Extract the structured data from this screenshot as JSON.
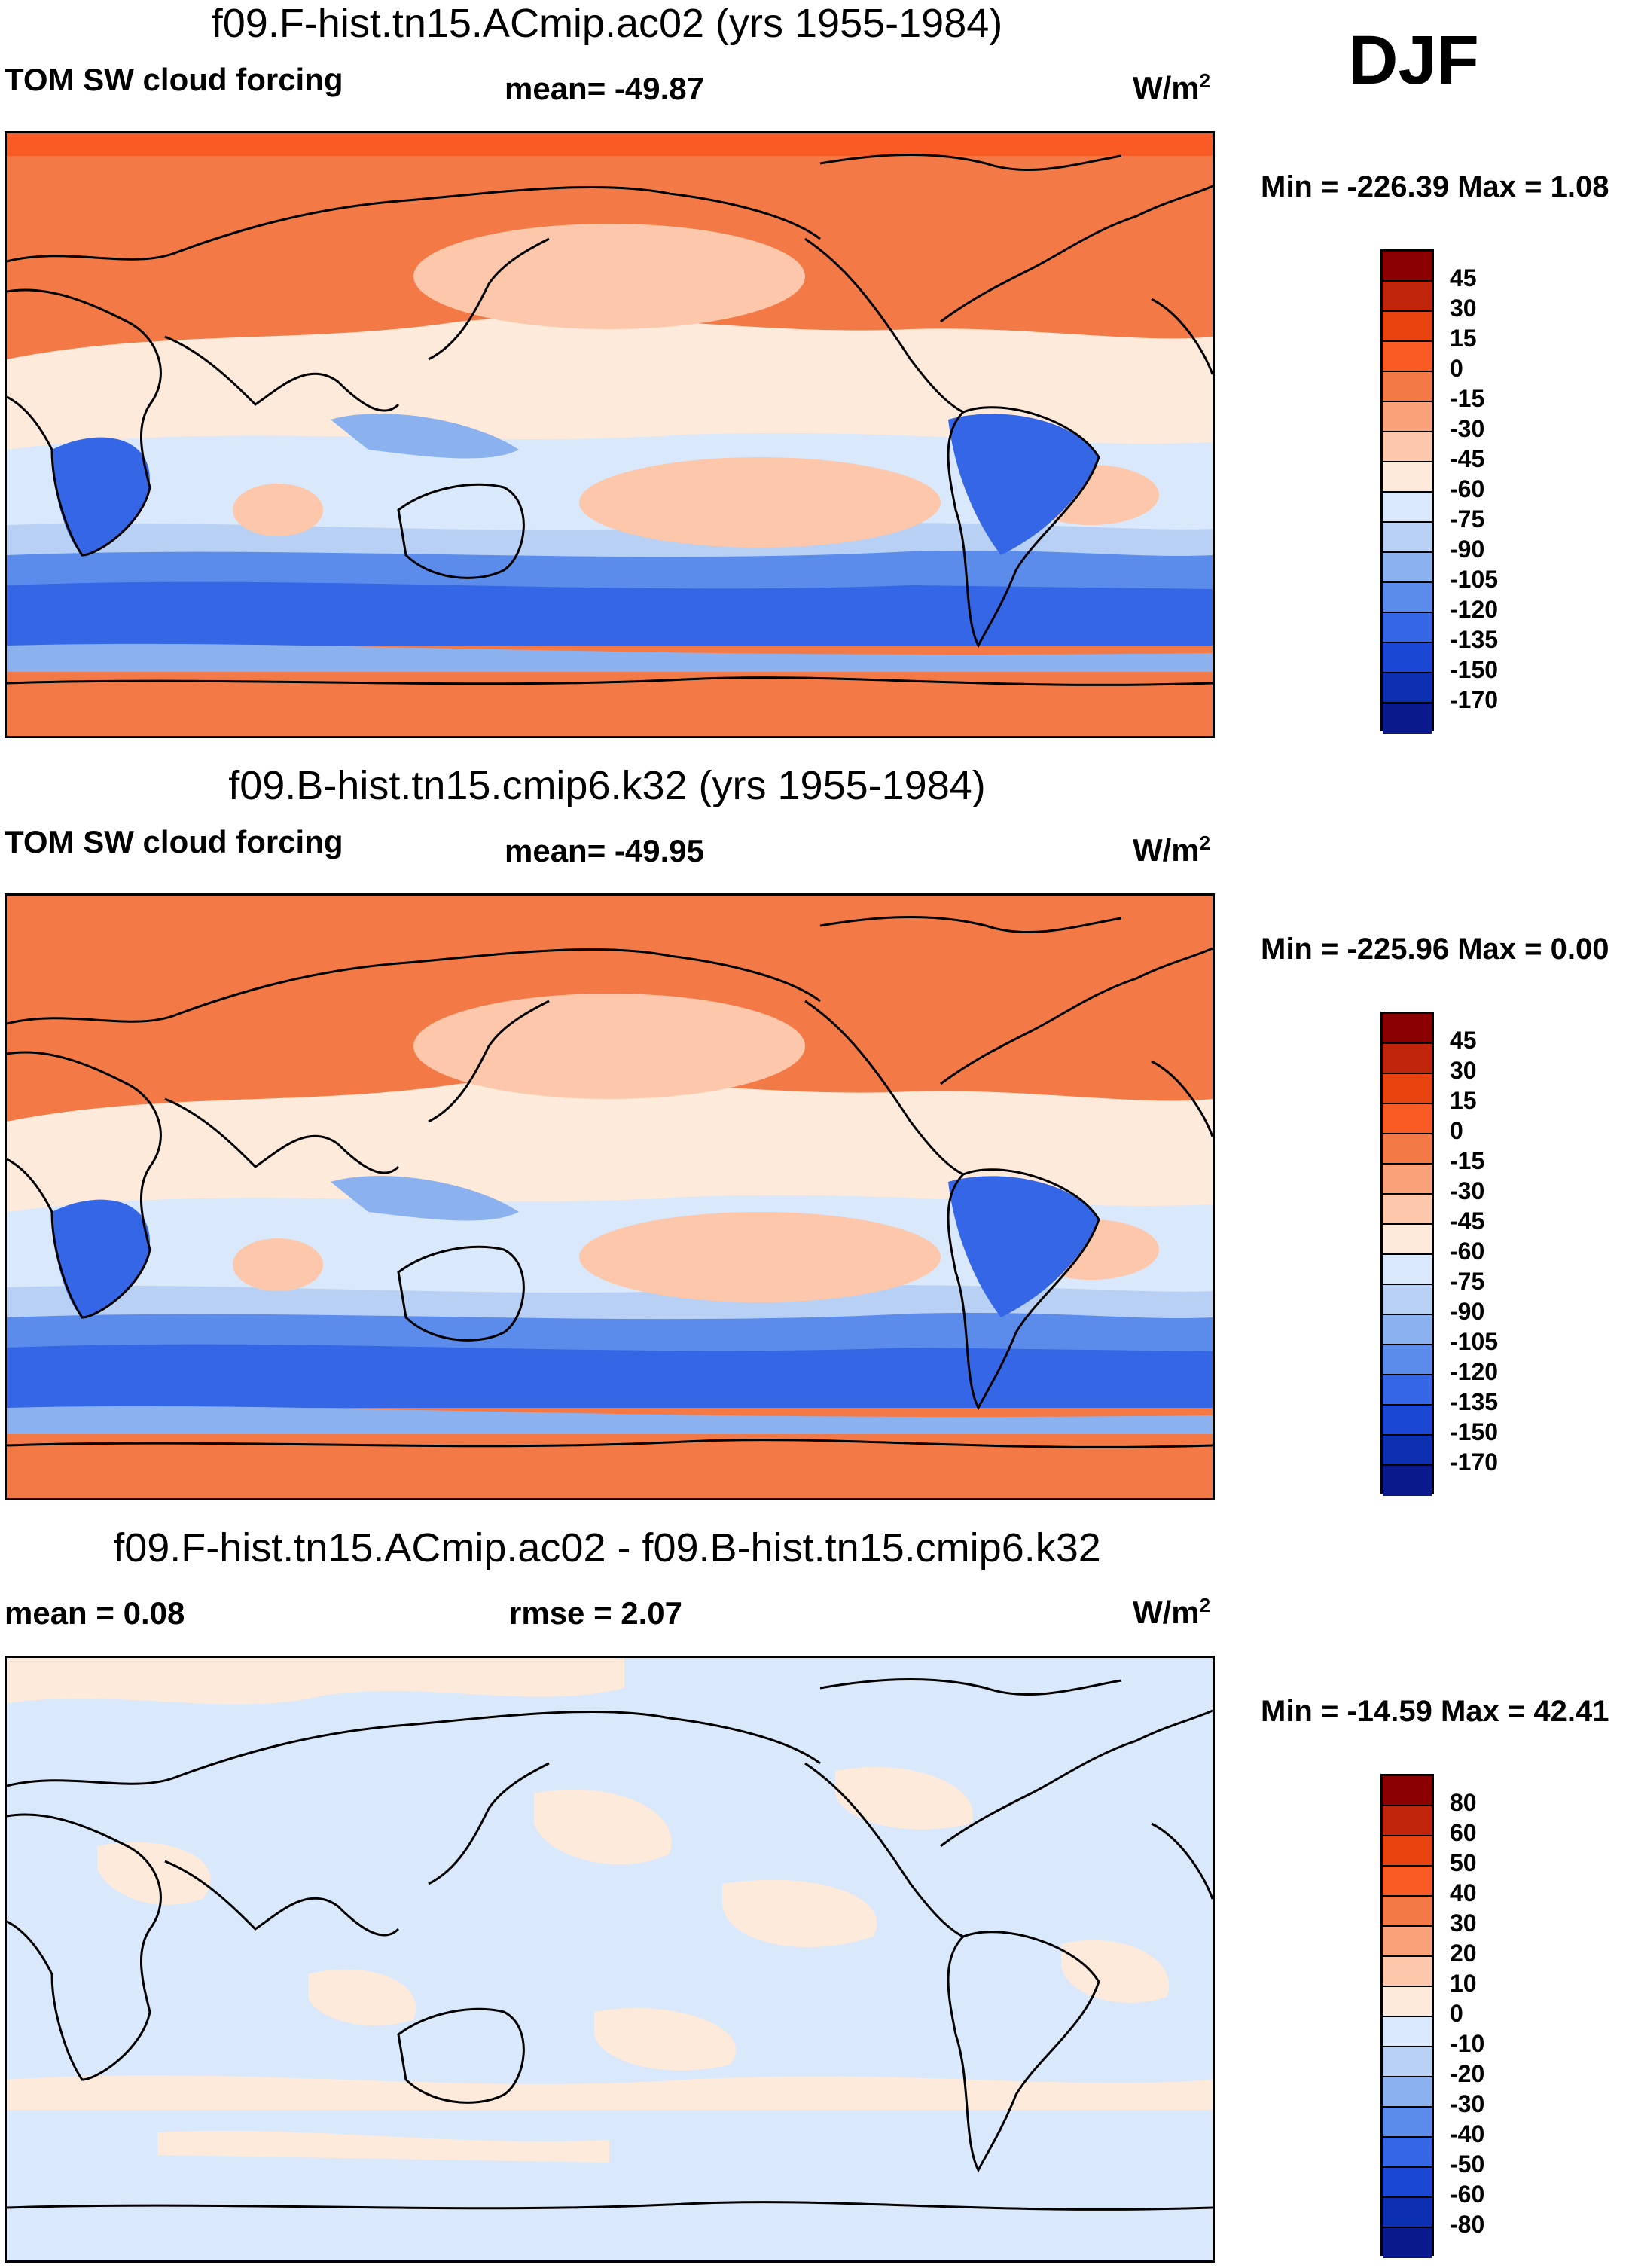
{
  "season": "DJF",
  "units_base": "W/m",
  "units_exp": "2",
  "land_color": "#000000",
  "panels": [
    {
      "title": "f09.F-hist.tn15.ACmip.ac02 (yrs 1955-1984)",
      "left_label": "TOM SW cloud forcing",
      "center_label": "mean= -49.87",
      "min_max": "Min = -226.39 Max =   1.08",
      "colorbar": {
        "colors": [
          "#8b0000",
          "#c0240a",
          "#e8420e",
          "#fa5a23",
          "#f37a47",
          "#f9a279",
          "#fcc7ab",
          "#fdeadb",
          "#d9e8fb",
          "#b8d0f4",
          "#8cb1ef",
          "#5c8ceb",
          "#3566e6",
          "#1a47d4",
          "#0d30b2",
          "#0a1a8c"
        ],
        "ticks": [
          "45",
          "30",
          "15",
          "0",
          "-15",
          "-30",
          "-45",
          "-60",
          "-75",
          "-90",
          "-105",
          "-120",
          "-135",
          "-150",
          "-170"
        ]
      }
    },
    {
      "title": "f09.B-hist.tn15.cmip6.k32 (yrs 1955-1984)",
      "left_label": "TOM SW cloud forcing",
      "center_label": "mean= -49.95",
      "min_max": "Min = -225.96 Max =   0.00",
      "colorbar": {
        "colors": [
          "#8b0000",
          "#c0240a",
          "#e8420e",
          "#fa5a23",
          "#f37a47",
          "#f9a279",
          "#fcc7ab",
          "#fdeadb",
          "#d9e8fb",
          "#b8d0f4",
          "#8cb1ef",
          "#5c8ceb",
          "#3566e6",
          "#1a47d4",
          "#0d30b2",
          "#0a1a8c"
        ],
        "ticks": [
          "45",
          "30",
          "15",
          "0",
          "-15",
          "-30",
          "-45",
          "-60",
          "-75",
          "-90",
          "-105",
          "-120",
          "-135",
          "-150",
          "-170"
        ]
      }
    },
    {
      "title": "f09.F-hist.tn15.ACmip.ac02 - f09.B-hist.tn15.cmip6.k32",
      "left_label": "mean =   0.08",
      "center_label": "rmse =   2.07",
      "min_max": "Min = -14.59 Max =  42.41",
      "colorbar": {
        "colors": [
          "#8b0000",
          "#c0240a",
          "#e8420e",
          "#fa5a23",
          "#f37a47",
          "#f9a279",
          "#fcc7ab",
          "#fdeadb",
          "#d9e8fb",
          "#b8d0f4",
          "#8cb1ef",
          "#5c8ceb",
          "#3566e6",
          "#1a47d4",
          "#0d30b2",
          "#0a1a8c"
        ],
        "ticks": [
          "80",
          "60",
          "50",
          "40",
          "30",
          "20",
          "10",
          "0",
          "-10",
          "-20",
          "-30",
          "-40",
          "-50",
          "-60",
          "-80"
        ]
      }
    }
  ]
}
